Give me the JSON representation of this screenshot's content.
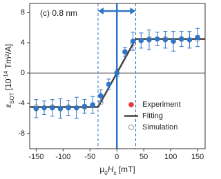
{
  "chart_data": {
    "type": "scatter",
    "annotation": "(c) 0.8 nm",
    "xlabel": [
      "μ",
      "0",
      "H",
      "x",
      " [mT]"
    ],
    "ylabel": [
      "ε",
      "SOT",
      " [10",
      "-14",
      " Tm²/A]"
    ],
    "xlim": [
      -162,
      164
    ],
    "ylim": [
      -10,
      9.2
    ],
    "xticks": [
      -150,
      -100,
      -50,
      0,
      50,
      100,
      150
    ],
    "yticks": [
      -8,
      -4,
      0,
      4,
      8
    ],
    "hline": 0,
    "vline": 0,
    "dashed_lines": [
      -35,
      35
    ],
    "legend": "lower right",
    "series": [
      {
        "name": "Experiment",
        "color": "#2e75c8",
        "kind": "points",
        "x": [
          -150,
          -135,
          -120,
          -105,
          -90,
          -75,
          -60,
          -45,
          -30,
          -15,
          0,
          15,
          30,
          45,
          60,
          75,
          90,
          105,
          120,
          135,
          150
        ],
        "values": [
          -4.7,
          -4.6,
          -4.6,
          -4.7,
          -4.6,
          -4.6,
          -4.4,
          -4.2,
          -3.0,
          -1.5,
          0,
          2.8,
          4.2,
          4.3,
          4.4,
          4.5,
          4.4,
          4.2,
          4.5,
          4.4,
          4.7
        ],
        "errors": [
          1.2,
          0.9,
          1.1,
          1.3,
          1.0,
          1.4,
          0.9,
          1.1,
          0.8,
          0.7,
          0.5,
          0.6,
          1.2,
          1.0,
          1.3,
          0.9,
          1.1,
          1.3,
          1.0,
          1.1,
          1.2
        ]
      },
      {
        "name": "Fitting",
        "color": "#444444",
        "kind": "line",
        "x": [
          -162,
          -35,
          35,
          164
        ],
        "values": [
          -4.5,
          -4.5,
          4.5,
          4.5
        ]
      },
      {
        "name": "Simulation",
        "color": "#999999",
        "kind": "open",
        "x": [
          -150,
          -120,
          -90,
          -60,
          -30,
          0,
          30,
          60,
          90,
          120,
          150
        ],
        "values": [
          -4.5,
          -4.5,
          -4.5,
          -4.5,
          -3.9,
          0,
          3.9,
          4.5,
          4.5,
          4.5,
          4.5
        ]
      }
    ]
  }
}
